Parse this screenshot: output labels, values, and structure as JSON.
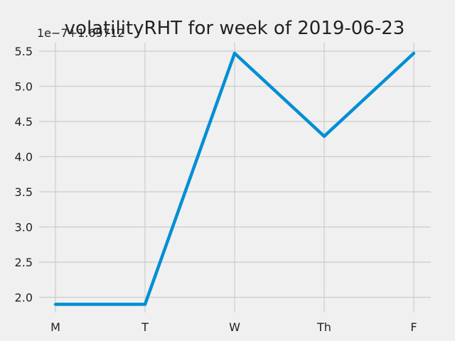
{
  "chart_data": {
    "type": "line",
    "title": "volatilityRHT for week of 2019-06-23",
    "offset_text": "1e−7+1.69712",
    "xlabel": "",
    "ylabel": "",
    "categories": [
      "M",
      "T",
      "W",
      "Th",
      "F"
    ],
    "series": [
      {
        "values": [
          1.9,
          1.9,
          5.47,
          4.29,
          5.47
        ]
      }
    ],
    "ylim": [
      1.8,
      5.6
    ],
    "yticks": [
      "2.0",
      "2.5",
      "3.0",
      "3.5",
      "4.0",
      "4.5",
      "5.0",
      "5.5"
    ],
    "grid": true,
    "colors": {
      "line": "#008fd5",
      "grid": "#cbcbcb",
      "background": "#f0f0f0"
    }
  }
}
